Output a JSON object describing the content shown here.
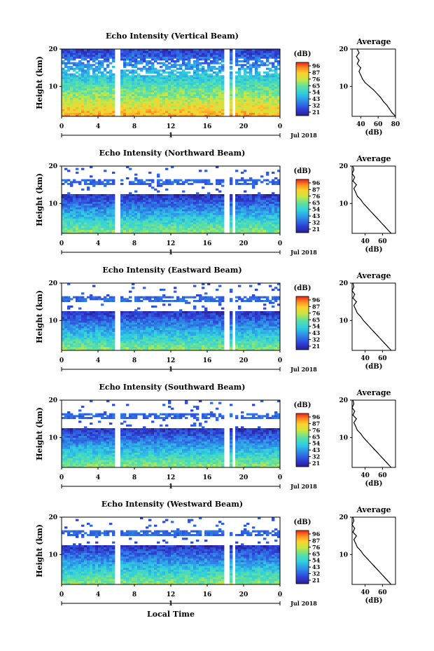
{
  "chart_data": [
    {
      "type": "heatmap",
      "title": "Echo Intensity (Vertical Beam)",
      "ylabel": "Height (km)",
      "x_ticks": [
        "0",
        "4",
        "8",
        "12",
        "16",
        "20",
        "0"
      ],
      "y_ticks": [
        "10",
        "20"
      ],
      "date_marker": "1",
      "date_label": "Jul 2018",
      "colorbar": {
        "unit": "(dB)",
        "ticks": [
          "96",
          "87",
          "76",
          "65",
          "54",
          "43",
          "32",
          "21"
        ]
      },
      "profile": {
        "title": "Average",
        "ylabel_ticks": [
          "10",
          "20"
        ],
        "x_ticks": [
          "40",
          "60",
          "80"
        ],
        "xlabel": "(dB)",
        "heights": [
          2,
          3,
          4,
          5,
          6,
          7,
          8,
          9,
          10,
          11,
          12,
          13,
          14,
          15,
          16,
          17,
          18,
          19,
          20
        ],
        "values": [
          80,
          76,
          73,
          70,
          66,
          63,
          59,
          55,
          50,
          45,
          42,
          40,
          38,
          40,
          36,
          38,
          35,
          38,
          36
        ]
      }
    },
    {
      "type": "heatmap",
      "title": "Echo Intensity (Northward Beam)",
      "ylabel": "Height (km)",
      "x_ticks": [
        "0",
        "4",
        "8",
        "12",
        "16",
        "20",
        "0"
      ],
      "y_ticks": [
        "10",
        "20"
      ],
      "date_marker": "1",
      "date_label": "Jul 2018",
      "colorbar": {
        "unit": "(dB)",
        "ticks": [
          "96",
          "87",
          "76",
          "65",
          "54",
          "43",
          "32",
          "21"
        ]
      },
      "profile": {
        "title": "Average",
        "ylabel_ticks": [
          "10",
          "20"
        ],
        "x_ticks": [
          "40",
          "60"
        ],
        "xlabel": "(dB)",
        "heights": [
          2,
          3,
          4,
          5,
          6,
          7,
          8,
          9,
          10,
          11,
          12,
          13,
          14,
          15,
          16,
          17,
          18,
          19,
          20
        ],
        "values": [
          70,
          66,
          62,
          58,
          54,
          50,
          46,
          42,
          38,
          35,
          31,
          29,
          27,
          30,
          26,
          28,
          25,
          27,
          26
        ]
      }
    },
    {
      "type": "heatmap",
      "title": "Echo Intensity (Eastward Beam)",
      "ylabel": "Height (km)",
      "x_ticks": [
        "0",
        "4",
        "8",
        "12",
        "16",
        "20",
        "0"
      ],
      "y_ticks": [
        "10",
        "20"
      ],
      "date_marker": "1",
      "date_label": "Jul 2018",
      "colorbar": {
        "unit": "(dB)",
        "ticks": [
          "96",
          "87",
          "76",
          "65",
          "54",
          "43",
          "32",
          "21"
        ]
      },
      "profile": {
        "title": "Average",
        "ylabel_ticks": [
          "10",
          "20"
        ],
        "x_ticks": [
          "40",
          "60"
        ],
        "xlabel": "(dB)",
        "heights": [
          2,
          3,
          4,
          5,
          6,
          7,
          8,
          9,
          10,
          11,
          12,
          13,
          14,
          15,
          16,
          17,
          18,
          19,
          20
        ],
        "values": [
          70,
          66,
          62,
          58,
          54,
          50,
          46,
          42,
          38,
          35,
          31,
          29,
          27,
          30,
          26,
          28,
          25,
          27,
          26
        ]
      }
    },
    {
      "type": "heatmap",
      "title": "Echo Intensity (Southward Beam)",
      "ylabel": "Height (km)",
      "x_ticks": [
        "0",
        "4",
        "8",
        "12",
        "16",
        "20",
        "0"
      ],
      "y_ticks": [
        "10",
        "20"
      ],
      "date_marker": "1",
      "date_label": "Jul 2018",
      "colorbar": {
        "unit": "(dB)",
        "ticks": [
          "96",
          "87",
          "76",
          "65",
          "54",
          "43",
          "32",
          "21"
        ]
      },
      "profile": {
        "title": "Average",
        "ylabel_ticks": [
          "10",
          "20"
        ],
        "x_ticks": [
          "40",
          "60"
        ],
        "xlabel": "(dB)",
        "heights": [
          2,
          3,
          4,
          5,
          6,
          7,
          8,
          9,
          10,
          11,
          12,
          13,
          14,
          15,
          16,
          17,
          18,
          19,
          20
        ],
        "values": [
          70,
          66,
          62,
          58,
          54,
          50,
          46,
          42,
          38,
          35,
          31,
          29,
          27,
          30,
          26,
          28,
          25,
          27,
          26
        ]
      }
    },
    {
      "type": "heatmap",
      "title": "Echo Intensity (Westward Beam)",
      "ylabel": "Height (km)",
      "x_ticks": [
        "0",
        "4",
        "8",
        "12",
        "16",
        "20",
        "0"
      ],
      "y_ticks": [
        "10",
        "20"
      ],
      "date_marker": "1",
      "date_label": "Jul 2018",
      "xlabel": "Local Time",
      "colorbar": {
        "unit": "(dB)",
        "ticks": [
          "96",
          "87",
          "76",
          "65",
          "54",
          "43",
          "32",
          "21"
        ]
      },
      "profile": {
        "title": "Average",
        "ylabel_ticks": [
          "10",
          "20"
        ],
        "x_ticks": [
          "40",
          "60"
        ],
        "xlabel": "(dB)",
        "heights": [
          2,
          3,
          4,
          5,
          6,
          7,
          8,
          9,
          10,
          11,
          12,
          13,
          14,
          15,
          16,
          17,
          18,
          19,
          20
        ],
        "values": [
          70,
          66,
          62,
          58,
          54,
          50,
          46,
          42,
          38,
          35,
          31,
          29,
          27,
          30,
          26,
          28,
          25,
          27,
          26
        ]
      }
    }
  ]
}
